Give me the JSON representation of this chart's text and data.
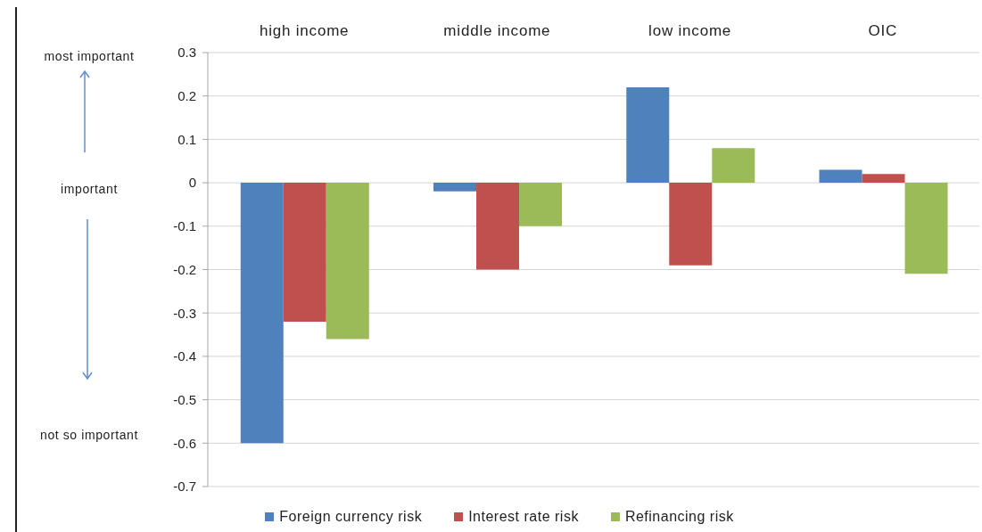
{
  "chart_data": {
    "type": "bar",
    "categories": [
      "high income",
      "middle income",
      "low income",
      "OIC"
    ],
    "series": [
      {
        "name": "Foreign currency risk",
        "color": "#4f81bd",
        "values": [
          -0.6,
          -0.02,
          0.22,
          0.03
        ]
      },
      {
        "name": "Interest rate risk",
        "color": "#c0504d",
        "values": [
          -0.32,
          -0.2,
          -0.19,
          0.02
        ]
      },
      {
        "name": "Refinancing risk",
        "color": "#9bbb59",
        "values": [
          -0.36,
          -0.1,
          0.08,
          -0.21
        ]
      }
    ],
    "ylim": [
      -0.7,
      0.3
    ],
    "yticks": [
      -0.7,
      -0.6,
      -0.5,
      -0.4,
      -0.3,
      -0.2,
      -0.1,
      0,
      0.1,
      0.2,
      0.3
    ],
    "grid": "y",
    "legend": "bottom",
    "annotations": [
      "most important",
      "important",
      "not so important"
    ]
  }
}
